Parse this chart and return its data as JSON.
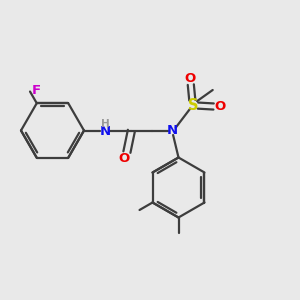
{
  "bg_color": "#e9e9e9",
  "bond_color": "#3d3d3d",
  "lw": 1.6,
  "dbo": 0.012,
  "colors": {
    "N": "#1010ee",
    "O": "#ee0000",
    "F": "#cc00cc",
    "S": "#cccc00",
    "H_text": "#999999",
    "C": "#3d3d3d"
  },
  "fs": 9.5,
  "fs_s": 7.5,
  "figsize": [
    3.0,
    3.0
  ],
  "dpi": 100
}
